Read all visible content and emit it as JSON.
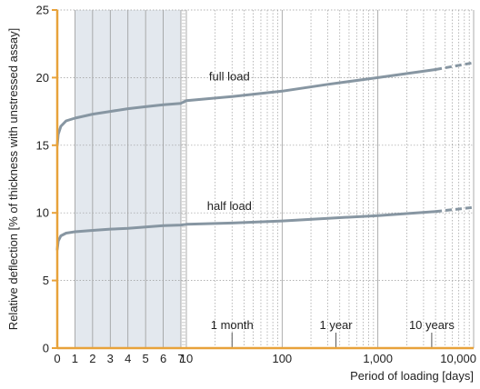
{
  "chart_data": {
    "type": "line",
    "title": "",
    "xlabel": "Period of loading [days]",
    "ylabel": "Relative deflection [% of thickness with unstressed assay]",
    "x_axis": {
      "scale": "linear days 0-7, then logarithmic 7-10,000",
      "ticks": [
        "0",
        "1",
        "2",
        "3",
        "4",
        "5",
        "6",
        "7",
        "10",
        "100",
        "1,000",
        "10,000"
      ],
      "xlim": [
        0,
        10000
      ]
    },
    "y_axis": {
      "ylim": [
        0,
        25
      ],
      "ticks": [
        "0",
        "5",
        "10",
        "15",
        "20",
        "25"
      ]
    },
    "shaded_region": {
      "x_range": [
        1,
        7
      ],
      "color": "#e3e8ee"
    },
    "grid": true,
    "colors": {
      "axis": "#e8a23a",
      "series": "#8796a2",
      "grid": "#9a9a9a",
      "shade": "#e3e8ee"
    },
    "series": [
      {
        "name": "full load",
        "x": [
          0,
          0.05,
          0.2,
          0.5,
          1,
          2,
          3,
          4,
          5,
          6,
          7,
          10,
          30,
          100,
          300,
          1000,
          4000,
          10000
        ],
        "values": [
          15.0,
          15.8,
          16.4,
          16.8,
          17.0,
          17.3,
          17.5,
          17.7,
          17.85,
          18.0,
          18.1,
          18.3,
          18.6,
          19.0,
          19.5,
          20.0,
          20.6,
          21.1
        ],
        "dashed_from_x": 4000
      },
      {
        "name": "half load",
        "x": [
          0,
          0.05,
          0.2,
          0.5,
          1,
          2,
          3,
          4,
          5,
          6,
          7,
          10,
          30,
          100,
          300,
          1000,
          4000,
          10000
        ],
        "values": [
          7.3,
          7.9,
          8.3,
          8.5,
          8.6,
          8.7,
          8.8,
          8.85,
          8.95,
          9.05,
          9.1,
          9.15,
          9.25,
          9.4,
          9.6,
          9.8,
          10.1,
          10.4
        ],
        "dashed_from_x": 4000
      }
    ],
    "annotations": [
      {
        "label": "1 month",
        "x": 30
      },
      {
        "label": "1 year",
        "x": 365
      },
      {
        "label": "10 years",
        "x": 3650
      }
    ]
  }
}
